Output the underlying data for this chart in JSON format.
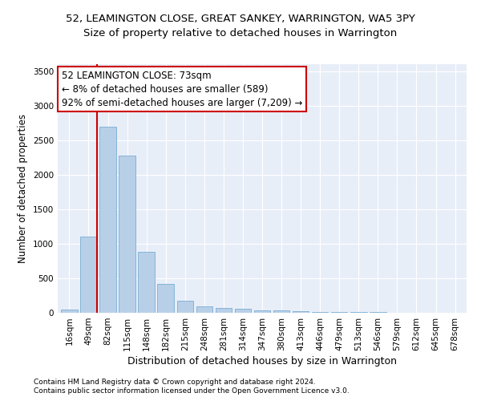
{
  "title1": "52, LEAMINGTON CLOSE, GREAT SANKEY, WARRINGTON, WA5 3PY",
  "title2": "Size of property relative to detached houses in Warrington",
  "xlabel": "Distribution of detached houses by size in Warrington",
  "ylabel": "Number of detached properties",
  "categories": [
    "16sqm",
    "49sqm",
    "82sqm",
    "115sqm",
    "148sqm",
    "182sqm",
    "215sqm",
    "248sqm",
    "281sqm",
    "314sqm",
    "347sqm",
    "380sqm",
    "413sqm",
    "446sqm",
    "479sqm",
    "513sqm",
    "546sqm",
    "579sqm",
    "612sqm",
    "645sqm",
    "678sqm"
  ],
  "values": [
    50,
    1100,
    2700,
    2275,
    880,
    420,
    170,
    90,
    65,
    55,
    35,
    30,
    25,
    15,
    10,
    8,
    6,
    5,
    4,
    3,
    2
  ],
  "bar_color": "#b8cfe8",
  "bar_edgecolor": "#7aaed4",
  "vline_color": "#cc0000",
  "annotation_line1": "52 LEAMINGTON CLOSE: 73sqm",
  "annotation_line2": "← 8% of detached houses are smaller (589)",
  "annotation_line3": "92% of semi-detached houses are larger (7,209) →",
  "annotation_box_color": "#ffffff",
  "annotation_box_edgecolor": "#cc0000",
  "ylim": [
    0,
    3600
  ],
  "yticks": [
    0,
    500,
    1000,
    1500,
    2000,
    2500,
    3000,
    3500
  ],
  "bg_color": "#e8eef8",
  "footer1": "Contains HM Land Registry data © Crown copyright and database right 2024.",
  "footer2": "Contains public sector information licensed under the Open Government Licence v3.0.",
  "title1_fontsize": 9.5,
  "title2_fontsize": 9.5,
  "xlabel_fontsize": 9,
  "ylabel_fontsize": 8.5,
  "tick_fontsize": 7.5,
  "annotation_fontsize": 8.5,
  "footer_fontsize": 6.5
}
